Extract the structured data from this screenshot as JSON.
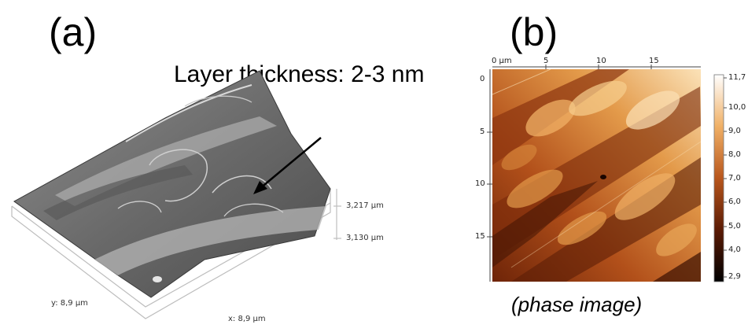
{
  "panel_a": {
    "label": "(a)",
    "annotation": "Layer thickness: 2-3 nm",
    "z_top": "3,217 µm",
    "z_bottom": "3,130 µm",
    "y_extent": "y: 8,9 µm",
    "x_extent": "x: 8,9 µm"
  },
  "panel_b": {
    "label": "(b)",
    "top_ticks": [
      "0 µm",
      "5",
      "10",
      "15"
    ],
    "left_ticks": [
      "0",
      "5",
      "10",
      "15"
    ],
    "colorbar_ticks": [
      "11,7",
      "10,0",
      "9,0",
      "8,0",
      "7,0",
      "6,0",
      "5,0",
      "4,0",
      "2,9"
    ],
    "caption": "(phase image)"
  },
  "colors": {
    "phase_dark": "#3a0f02",
    "phase_mid": "#b8561c",
    "phase_light": "#f3c27a",
    "phase_white": "#fff5e6"
  }
}
